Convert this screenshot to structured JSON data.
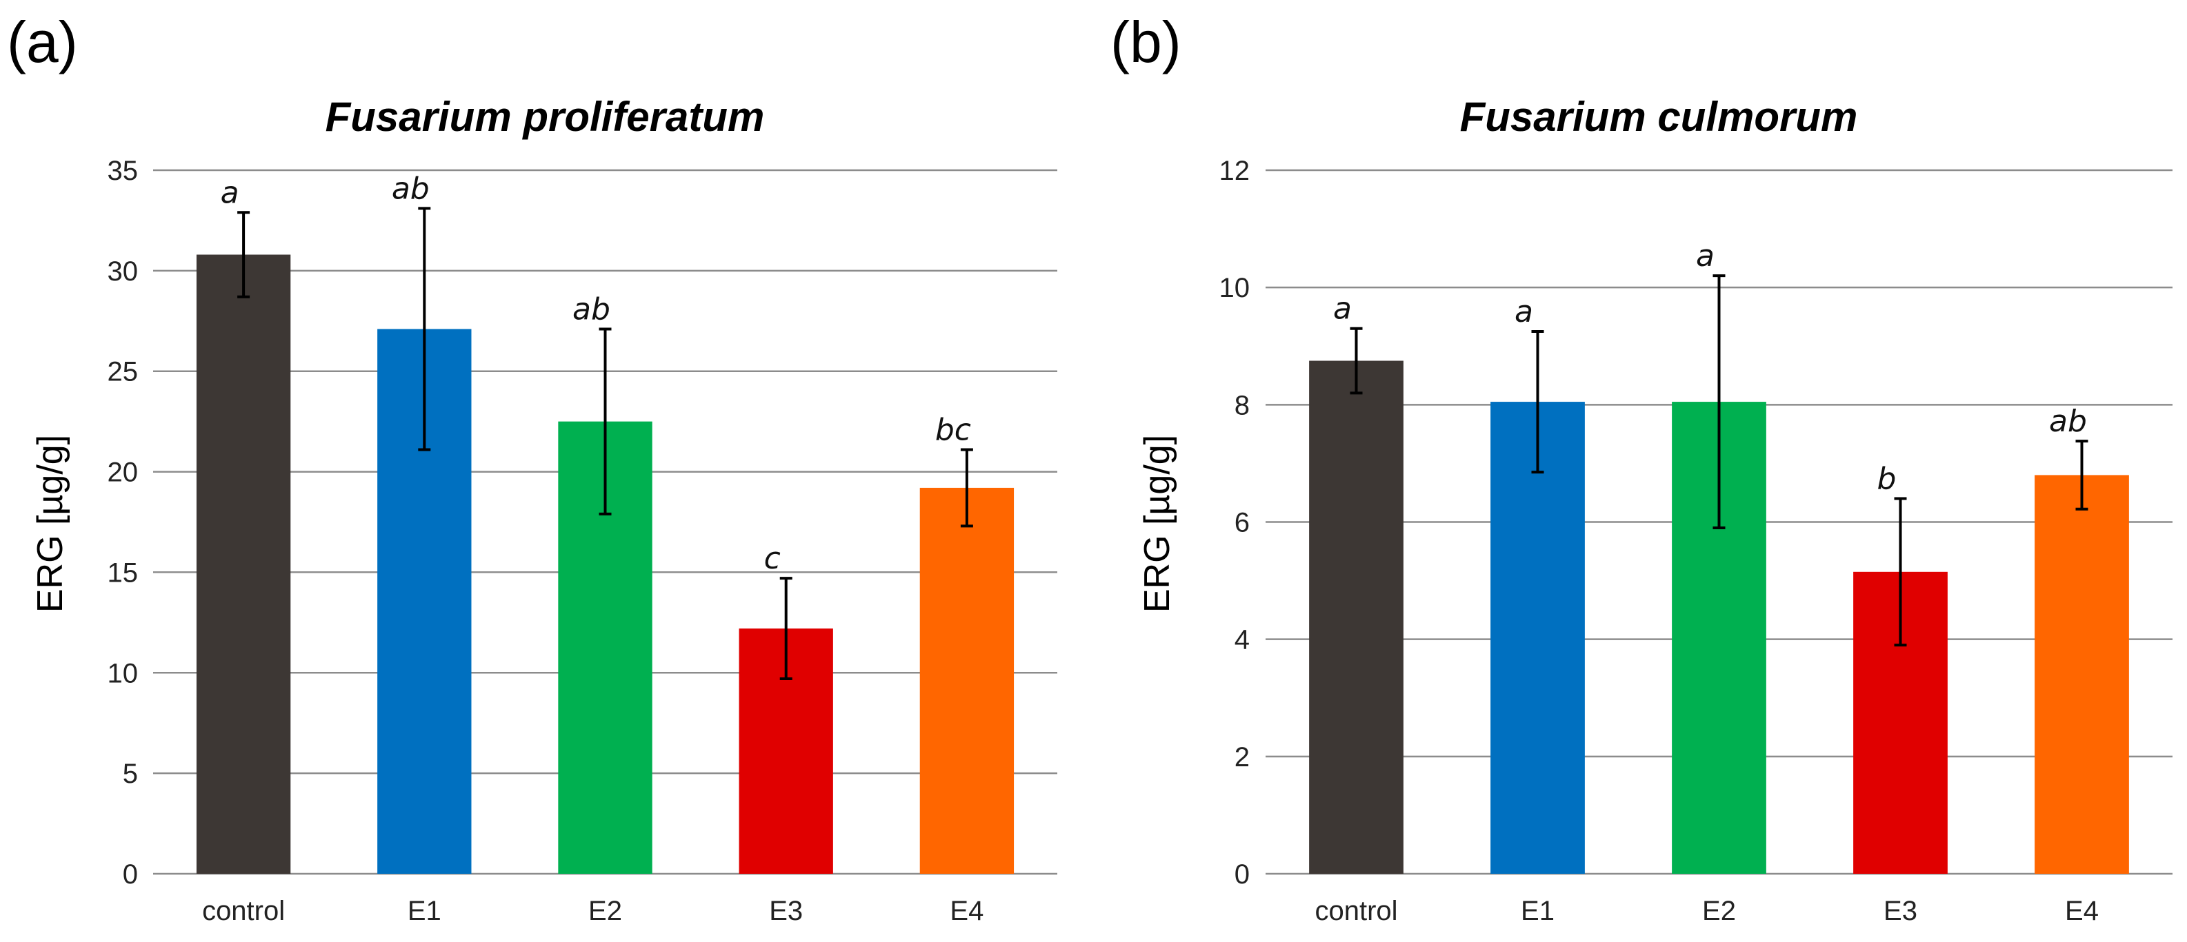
{
  "chart_data": [
    {
      "type": "bar",
      "panel_label": "(a)",
      "title": "Fusarium proliferatum",
      "xlabel": "",
      "ylabel": "ERG [µg/g]",
      "ylim": [
        0,
        35
      ],
      "yticks": [
        0,
        5,
        10,
        15,
        20,
        25,
        30,
        35
      ],
      "grid": true,
      "categories": [
        "control",
        "E1",
        "E2",
        "E3",
        "E4"
      ],
      "values": [
        30.8,
        27.1,
        22.5,
        12.2,
        19.2
      ],
      "errors": [
        2.1,
        6.0,
        4.6,
        2.5,
        1.9
      ],
      "significance": [
        "a",
        "ab",
        "ab",
        "c",
        "bc"
      ],
      "colors": [
        "#3d3734",
        "#0070c0",
        "#00b050",
        "#e00000",
        "#ff6600"
      ]
    },
    {
      "type": "bar",
      "panel_label": "(b)",
      "title": "Fusarium culmorum",
      "xlabel": "",
      "ylabel": "ERG [µg/g]",
      "ylim": [
        0,
        12
      ],
      "yticks": [
        0,
        2,
        4,
        6,
        8,
        10,
        12
      ],
      "grid": true,
      "categories": [
        "control",
        "E1",
        "E2",
        "E3",
        "E4"
      ],
      "values": [
        8.75,
        8.05,
        8.05,
        5.15,
        6.8
      ],
      "errors": [
        0.55,
        1.2,
        2.15,
        1.25,
        0.58
      ],
      "significance": [
        "a",
        "a",
        "a",
        "b",
        "ab"
      ],
      "colors": [
        "#3d3734",
        "#0070c0",
        "#00b050",
        "#e00000",
        "#ff6600"
      ]
    }
  ]
}
